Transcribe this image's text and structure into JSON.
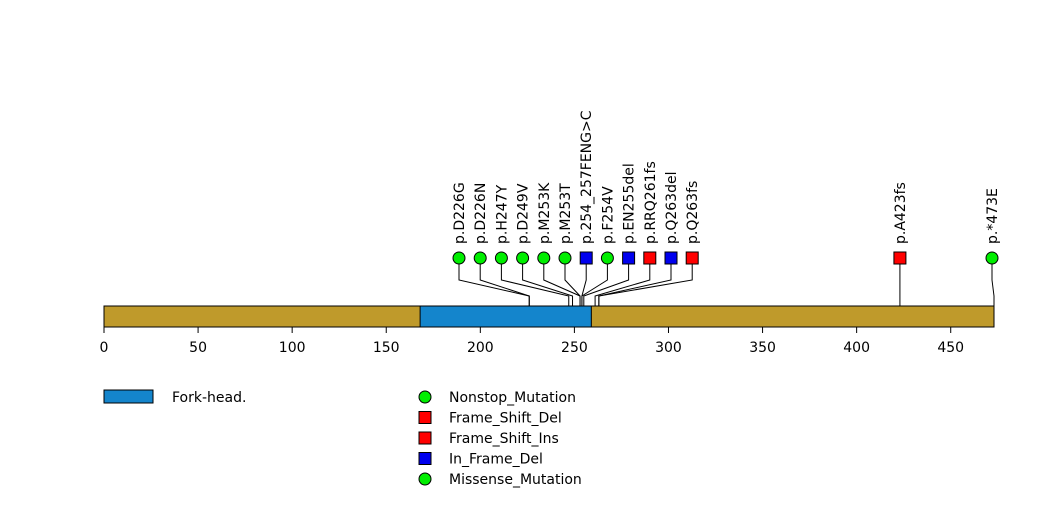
{
  "chart_data": {
    "type": "lollipop",
    "protein_length": 473,
    "xlim": [
      0,
      473
    ],
    "ticks": [
      0,
      50,
      100,
      150,
      200,
      250,
      300,
      350,
      400,
      450
    ],
    "colors": {
      "backbone": "#BF9A2B",
      "domain": "#1485CC",
      "Nonstop_Mutation": "#00EE00",
      "Frame_Shift_Del": "#FF0000",
      "Frame_Shift_Ins": "#FF0000",
      "In_Frame_Del": "#0000EE",
      "Missense_Mutation": "#00EE00"
    },
    "domains": [
      {
        "name": "Fork-head.",
        "start": 168,
        "end": 259
      }
    ],
    "mutations": [
      {
        "label": "p.D226G",
        "position": 226,
        "type": "Missense_Mutation",
        "shape": "circle"
      },
      {
        "label": "p.D226N",
        "position": 226,
        "type": "Missense_Mutation",
        "shape": "circle"
      },
      {
        "label": "p.H247Y",
        "position": 247,
        "type": "Missense_Mutation",
        "shape": "circle"
      },
      {
        "label": "p.D249V",
        "position": 249,
        "type": "Missense_Mutation",
        "shape": "circle"
      },
      {
        "label": "p.M253K",
        "position": 253,
        "type": "Missense_Mutation",
        "shape": "circle"
      },
      {
        "label": "p.M253T",
        "position": 253,
        "type": "Missense_Mutation",
        "shape": "circle"
      },
      {
        "label": "p.254_257FENG>C",
        "position": 254,
        "type": "In_Frame_Del",
        "shape": "square"
      },
      {
        "label": "p.F254V",
        "position": 254,
        "type": "Missense_Mutation",
        "shape": "circle"
      },
      {
        "label": "p.EN255del",
        "position": 255,
        "type": "In_Frame_Del",
        "shape": "square"
      },
      {
        "label": "p.RRQ261fs",
        "position": 261,
        "type": "Frame_Shift_Del",
        "shape": "square"
      },
      {
        "label": "p.Q263del",
        "position": 263,
        "type": "In_Frame_Del",
        "shape": "square"
      },
      {
        "label": "p.Q263fs",
        "position": 263,
        "type": "Frame_Shift_Del",
        "shape": "square"
      },
      {
        "label": "p.A423fs",
        "position": 423,
        "type": "Frame_Shift_Del",
        "shape": "square"
      },
      {
        "label": "p.*473E",
        "position": 473,
        "type": "Nonstop_Mutation",
        "shape": "circle"
      }
    ],
    "legend_domains": [
      {
        "label": "Fork-head.",
        "color": "#1485CC"
      }
    ],
    "legend_mutations": [
      {
        "label": "Nonstop_Mutation",
        "shape": "circle",
        "color": "#00EE00"
      },
      {
        "label": "Frame_Shift_Del",
        "shape": "square",
        "color": "#FF0000"
      },
      {
        "label": "Frame_Shift_Ins",
        "shape": "square",
        "color": "#FF0000"
      },
      {
        "label": "In_Frame_Del",
        "shape": "square",
        "color": "#0000EE"
      },
      {
        "label": "Missense_Mutation",
        "shape": "circle",
        "color": "#00EE00"
      }
    ]
  }
}
